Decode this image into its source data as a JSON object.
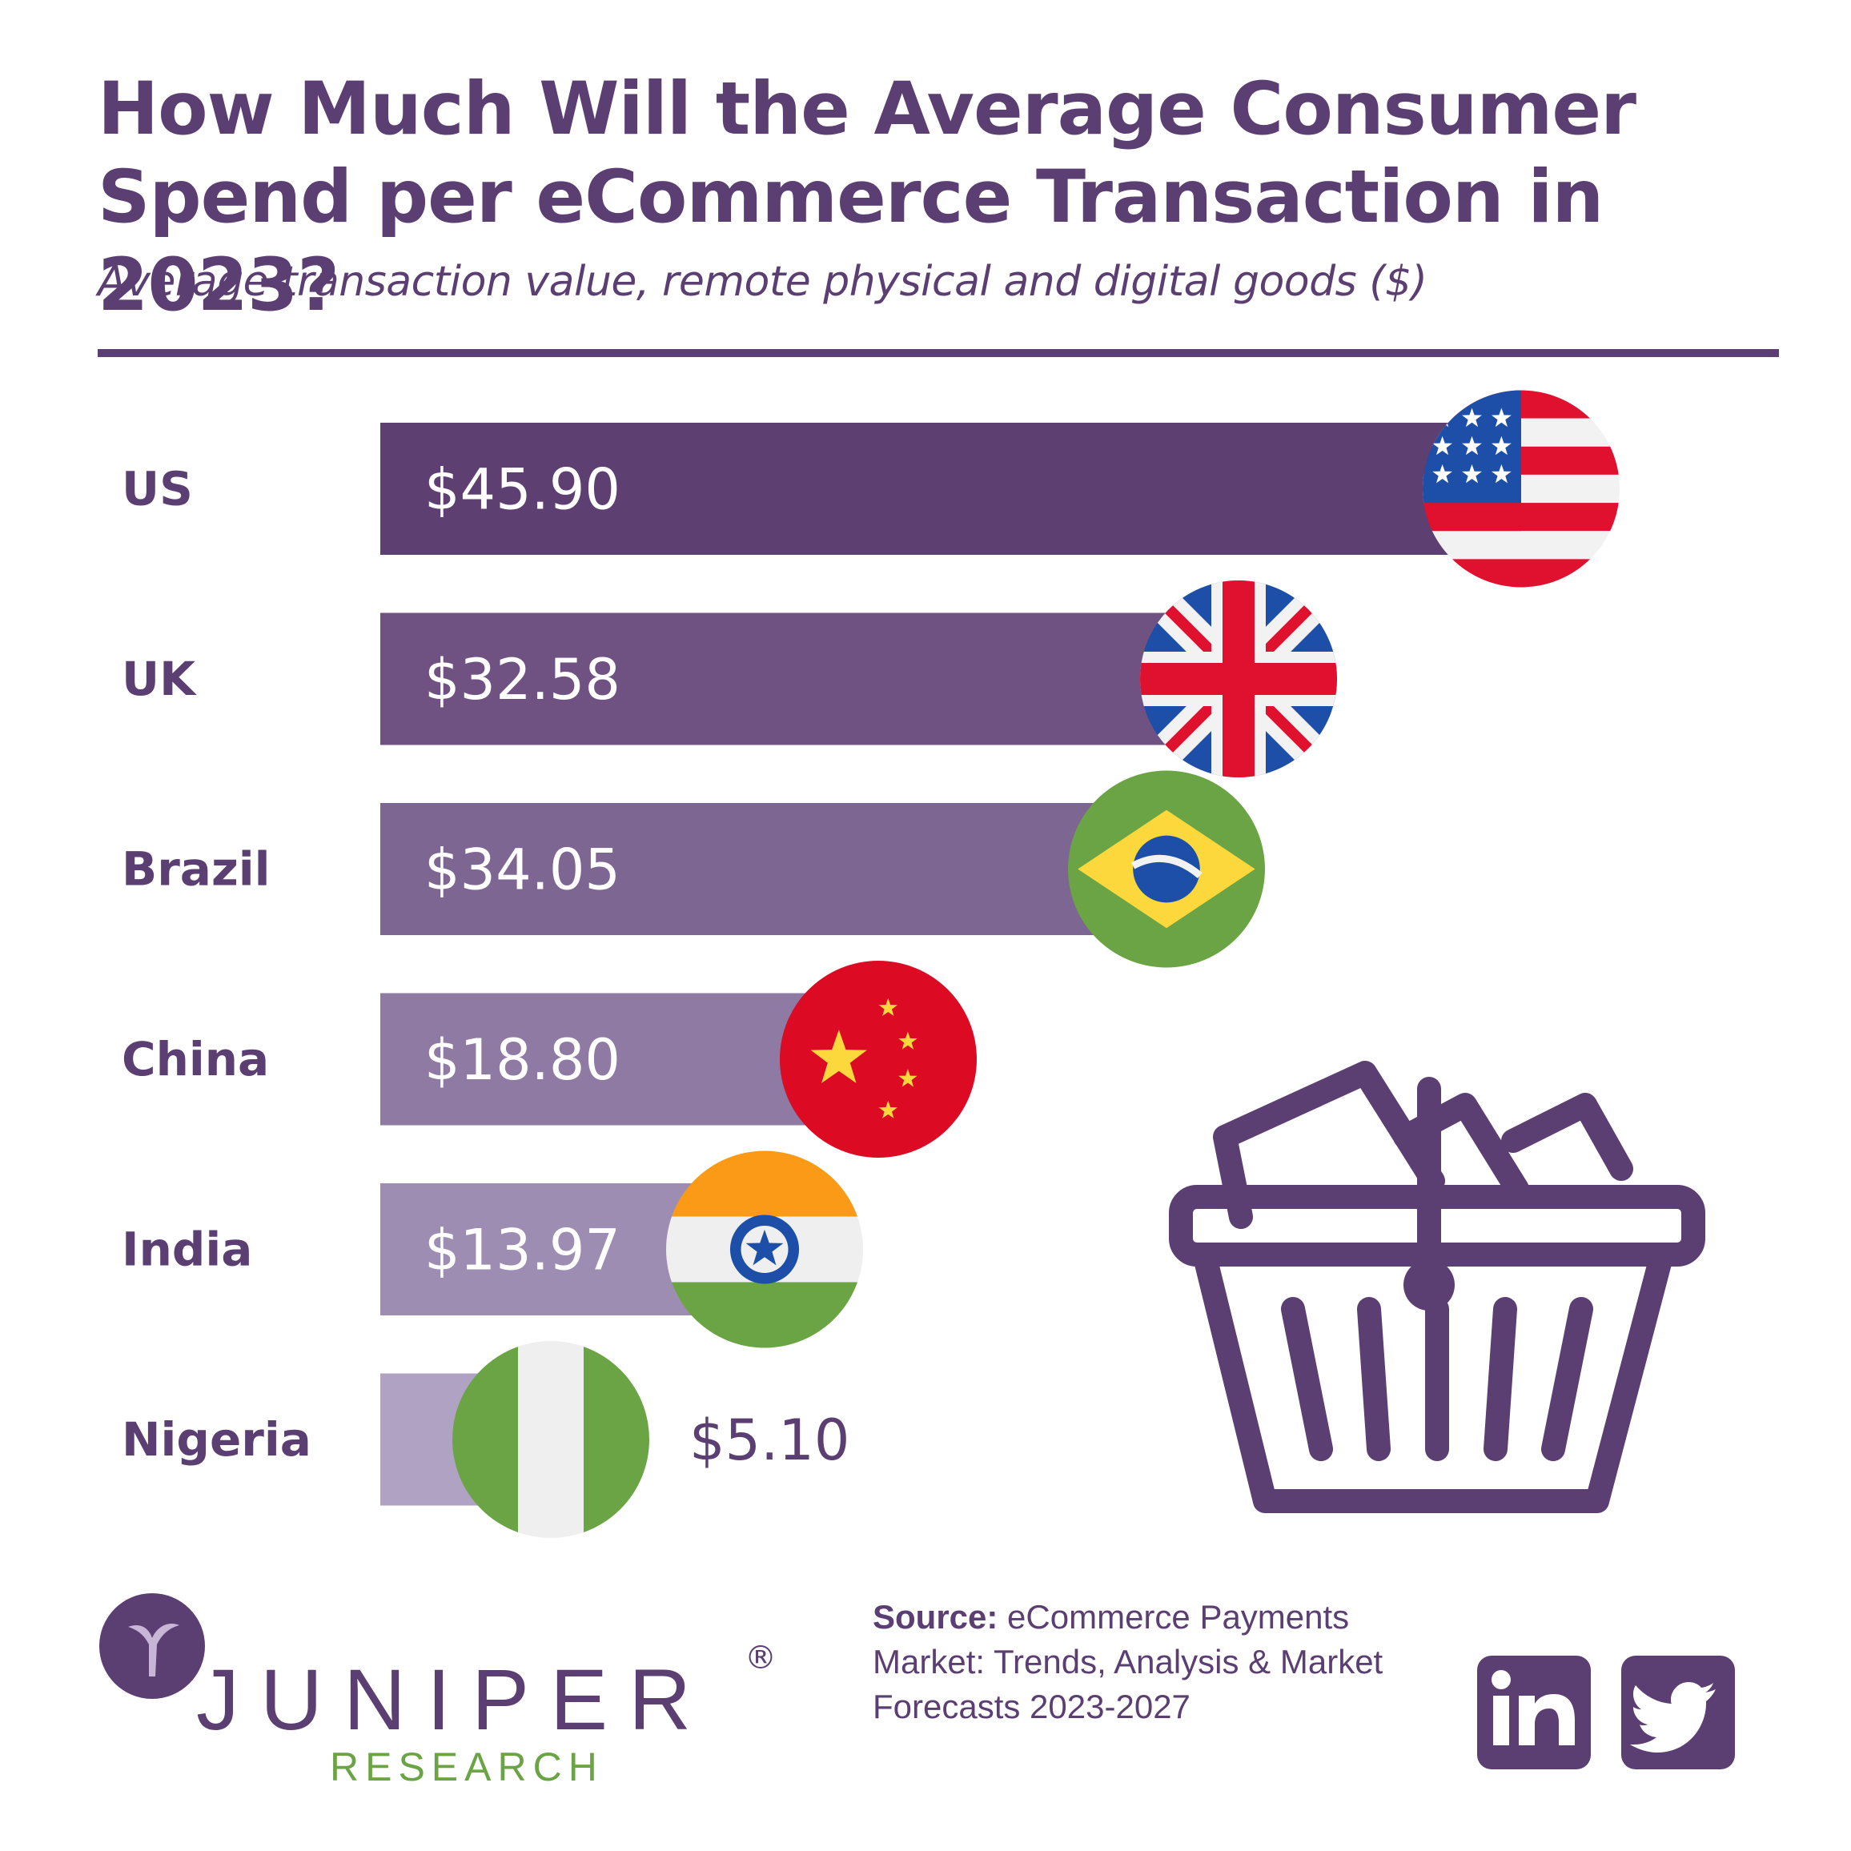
{
  "header": {
    "title_line1": "How Much Will the Average Consumer",
    "title_line2": "Spend per eCommerce Transaction in 2023?",
    "subtitle": "Average transaction value, remote physical and digital goods ($)"
  },
  "chart_data": {
    "type": "bar",
    "orientation": "horizontal",
    "title": "How Much Will the Average Consumer Spend per eCommerce Transaction in 2023?",
    "subtitle": "Average transaction value, remote physical and digital goods ($)",
    "categories": [
      "US",
      "UK",
      "Brazil",
      "China",
      "India",
      "Nigeria"
    ],
    "values": [
      45.9,
      32.58,
      34.05,
      18.8,
      13.97,
      5.1
    ],
    "labels": [
      "$45.90",
      "$32.58",
      "$34.05",
      "$18.80",
      "$13.97",
      "$5.10"
    ],
    "bar_colors": [
      "#5d3f72",
      "#6f5282",
      "#7e6692",
      "#8e7aa2",
      "#9e8db2",
      "#b0a2c2"
    ],
    "flags": [
      "us-flag-icon",
      "uk-flag-icon",
      "brazil-flag-icon",
      "china-flag-icon",
      "india-flag-icon",
      "nigeria-flag-icon"
    ]
  },
  "logo": {
    "name": "JUNIPER",
    "sub": "RESEARCH",
    "reg": "®"
  },
  "source": {
    "label": "Source:",
    "text": "eCommerce Payments Market: Trends, Analysis & Market Forecasts 2023-2027"
  },
  "colors": {
    "primary": "#5b3e72",
    "green": "#6aa444"
  },
  "social": [
    "linkedin-icon",
    "twitter-icon"
  ]
}
